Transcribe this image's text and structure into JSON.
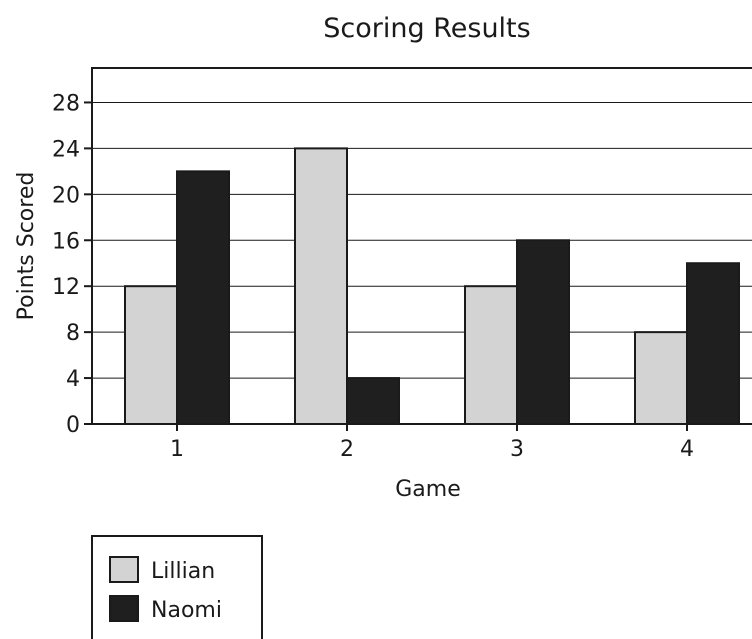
{
  "chart_data": {
    "type": "bar",
    "title": "Scoring Results",
    "xlabel": "Game",
    "ylabel": "Points Scored",
    "categories": [
      "1",
      "2",
      "3",
      "4"
    ],
    "series": [
      {
        "name": "Lillian",
        "values": [
          12,
          24,
          12,
          8
        ],
        "color": "#d3d3d3"
      },
      {
        "name": "Naomi",
        "values": [
          22,
          4,
          16,
          14
        ],
        "color": "#1f1f1f"
      }
    ],
    "ylim": [
      0,
      31
    ],
    "yticks": [
      0,
      4,
      8,
      12,
      16,
      20,
      24,
      28
    ],
    "grid": true,
    "legend_position": "bottom-left"
  }
}
